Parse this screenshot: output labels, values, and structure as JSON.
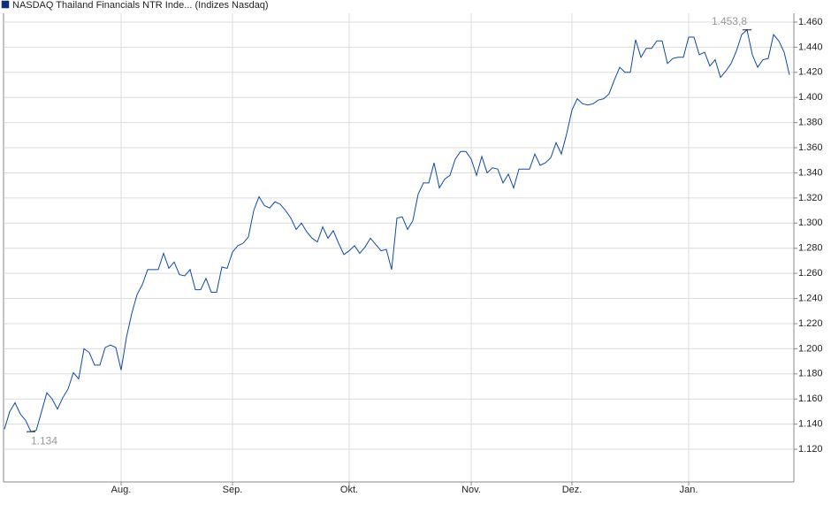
{
  "chart_data": {
    "type": "line",
    "series": [
      {
        "name": "NASDAQ Thailand Financials NTR Inde... (Indizes Nasdaq)",
        "color": "#0d4aa6",
        "values": [
          1136,
          1150,
          1157,
          1148,
          1143,
          1134,
          1135,
          1150,
          1165,
          1160,
          1152,
          1161,
          1168,
          1181,
          1176,
          1200,
          1197,
          1187,
          1187,
          1201,
          1203,
          1201,
          1183,
          1209,
          1228,
          1243,
          1251,
          1263,
          1263,
          1263,
          1276,
          1264,
          1269,
          1259,
          1258,
          1263,
          1247,
          1247,
          1256,
          1245,
          1245,
          1265,
          1264,
          1277,
          1282,
          1284,
          1289,
          1310,
          1321,
          1314,
          1312,
          1317,
          1315,
          1310,
          1304,
          1295,
          1300,
          1293,
          1288,
          1285,
          1297,
          1288,
          1294,
          1284,
          1275,
          1278,
          1282,
          1276,
          1281,
          1288,
          1283,
          1278,
          1279,
          1263,
          1304,
          1305,
          1295,
          1302,
          1323,
          1332,
          1332,
          1348,
          1328,
          1335,
          1338,
          1351,
          1357,
          1357,
          1351,
          1338,
          1353,
          1340,
          1344,
          1343,
          1332,
          1339,
          1328,
          1343,
          1343,
          1343,
          1355,
          1346,
          1348,
          1352,
          1364,
          1355,
          1371,
          1390,
          1399,
          1395,
          1394,
          1395,
          1398,
          1399,
          1403,
          1414,
          1424,
          1420,
          1420,
          1446,
          1432,
          1439,
          1439,
          1445,
          1445,
          1427,
          1431,
          1432,
          1432,
          1448,
          1448,
          1434,
          1436,
          1425,
          1430,
          1416,
          1421,
          1427,
          1437,
          1450,
          1453.8,
          1434,
          1424,
          1430,
          1431,
          1450,
          1445,
          1436,
          1418
        ],
        "value_labels": [
          null,
          null,
          null,
          null,
          null,
          "1.134",
          null,
          null,
          null,
          null,
          null,
          null,
          null,
          null,
          null,
          null,
          null,
          null,
          null,
          null,
          null,
          null,
          null,
          null,
          null,
          null,
          null,
          null,
          null,
          null,
          null,
          null,
          null,
          null,
          null,
          null,
          null,
          null,
          null,
          null,
          null,
          null,
          null,
          null,
          null,
          null,
          null,
          null,
          null,
          null,
          null,
          null,
          null,
          null,
          null,
          null,
          null,
          null,
          null,
          null,
          null,
          null,
          null,
          null,
          null,
          null,
          null,
          null,
          null,
          null,
          null,
          null,
          null,
          null,
          null,
          null,
          null,
          null,
          null,
          null,
          null,
          null,
          null,
          null,
          null,
          null,
          null,
          null,
          null,
          null,
          null,
          null,
          null,
          null,
          null,
          null,
          null,
          null,
          null,
          null,
          null,
          null,
          null,
          null,
          null,
          null,
          null,
          null,
          null,
          null,
          null,
          null,
          null,
          null,
          null,
          null,
          null,
          null,
          null,
          null,
          null,
          null,
          null,
          null,
          null,
          null,
          null,
          null,
          null,
          null,
          null,
          null,
          null,
          null,
          null,
          null,
          null,
          null,
          null,
          null,
          "1.453,8",
          null,
          null,
          null,
          null,
          null,
          null,
          null,
          null
        ]
      }
    ],
    "categories": [
      null,
      null,
      null,
      null,
      null,
      null,
      null,
      null,
      null,
      null,
      null,
      null,
      null,
      null,
      null,
      null,
      null,
      null,
      null,
      null,
      null,
      null,
      "Aug.",
      null,
      null,
      null,
      null,
      null,
      null,
      null,
      null,
      null,
      null,
      null,
      null,
      null,
      null,
      null,
      null,
      null,
      null,
      null,
      null,
      "Sep.",
      null,
      null,
      null,
      null,
      null,
      null,
      null,
      null,
      null,
      null,
      null,
      null,
      null,
      null,
      null,
      null,
      null,
      null,
      null,
      null,
      null,
      "Okt.",
      null,
      null,
      null,
      null,
      null,
      null,
      null,
      null,
      null,
      null,
      null,
      null,
      null,
      null,
      null,
      null,
      null,
      null,
      null,
      null,
      null,
      null,
      "Nov.",
      null,
      null,
      null,
      null,
      null,
      null,
      null,
      null,
      null,
      null,
      null,
      null,
      null,
      null,
      null,
      null,
      null,
      null,
      "Dez.",
      null,
      null,
      null,
      null,
      null,
      null,
      null,
      null,
      null,
      null,
      null,
      null,
      null,
      null,
      null,
      null,
      null,
      null,
      null,
      null,
      null,
      "Jan.",
      null,
      null,
      null,
      null,
      null,
      null,
      null,
      null,
      null,
      null,
      null,
      null,
      null,
      null,
      null,
      null,
      null,
      null,
      null
    ],
    "ylim": [
      1094,
      1467
    ],
    "yticks": [
      {
        "value": 1120,
        "label": "1.120"
      },
      {
        "value": 1140,
        "label": "1.140"
      },
      {
        "value": 1160,
        "label": "1.160"
      },
      {
        "value": 1180,
        "label": "1.180"
      },
      {
        "value": 1200,
        "label": "1.200"
      },
      {
        "value": 1220,
        "label": "1.220"
      },
      {
        "value": 1240,
        "label": "1.240"
      },
      {
        "value": 1260,
        "label": "1.260"
      },
      {
        "value": 1280,
        "label": "1.280"
      },
      {
        "value": 1300,
        "label": "1.300"
      },
      {
        "value": 1320,
        "label": "1.320"
      },
      {
        "value": 1340,
        "label": "1.340"
      },
      {
        "value": 1360,
        "label": "1.360"
      },
      {
        "value": 1380,
        "label": "1.380"
      },
      {
        "value": 1400,
        "label": "1.400"
      },
      {
        "value": 1420,
        "label": "1.420"
      },
      {
        "value": 1440,
        "label": "1.440"
      },
      {
        "value": 1460,
        "label": "1.460"
      }
    ],
    "grid": true
  }
}
